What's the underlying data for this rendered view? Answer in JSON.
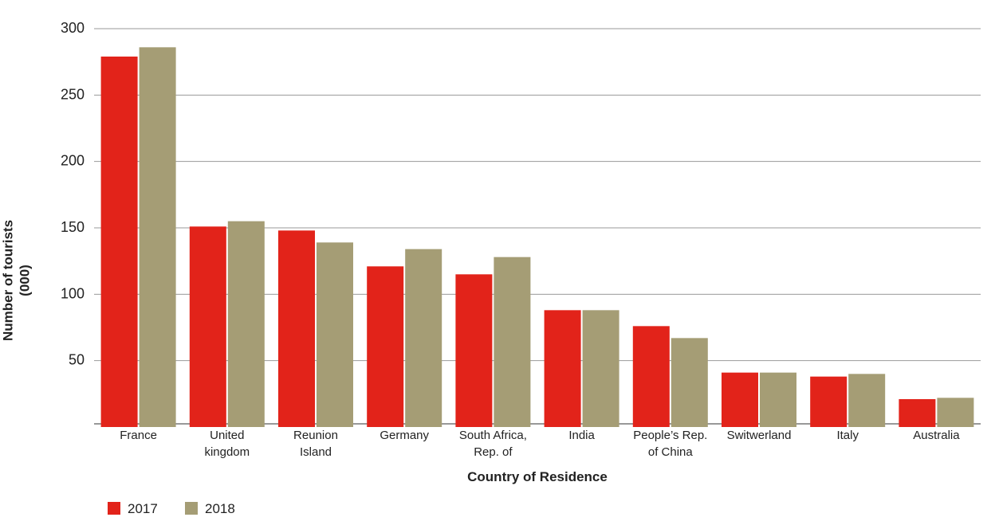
{
  "chart_data": {
    "type": "bar",
    "xlabel": "Country of Residence",
    "ylabel": "Number of tourists\n(000)",
    "categories": [
      "France",
      "United\nkingdom",
      "Reunion\nIsland",
      "Germany",
      "South Africa,\nRep. of",
      "India",
      "People’s Rep.\nof China",
      "Switwerland",
      "Italy",
      "Australia"
    ],
    "series": [
      {
        "name": "2017",
        "color": "#e2231a",
        "values": [
          279,
          151,
          148,
          121,
          115,
          88,
          76,
          41,
          38,
          21
        ]
      },
      {
        "name": "2018",
        "color": "#a59d75",
        "values": [
          286,
          155,
          139,
          134,
          128,
          88,
          67,
          41,
          40,
          22
        ]
      }
    ],
    "ylim": [
      0,
      300
    ],
    "yticks": [
      50,
      100,
      150,
      200,
      250,
      300
    ],
    "grid": true,
    "legend": "bottom-left"
  }
}
